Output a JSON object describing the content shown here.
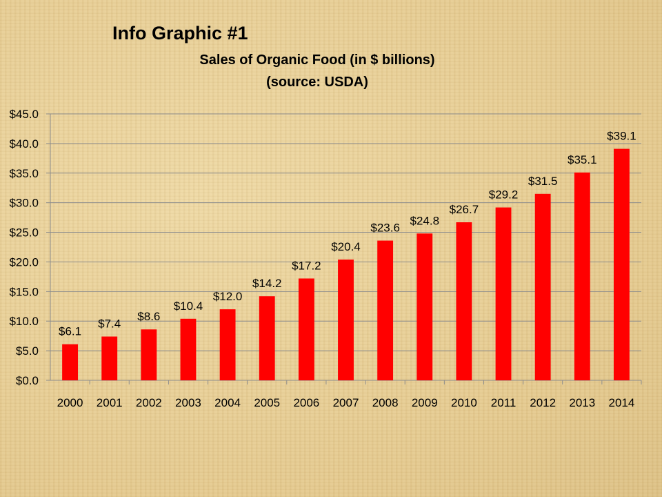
{
  "slide": {
    "heading": "Info Graphic #1",
    "title_line1": "Sales of Organic Food (in $ billions)",
    "title_line2": "(source: USDA)"
  },
  "chart_data": {
    "type": "bar",
    "title": "Sales of Organic Food (in $ billions)",
    "subtitle": "(source: USDA)",
    "categories": [
      "2000",
      "2001",
      "2002",
      "2003",
      "2004",
      "2005",
      "2006",
      "2007",
      "2008",
      "2009",
      "2010",
      "2011",
      "2012",
      "2013",
      "2014"
    ],
    "values": [
      6.1,
      7.4,
      8.6,
      10.4,
      12.0,
      14.2,
      17.2,
      20.4,
      23.6,
      24.8,
      26.7,
      29.2,
      31.5,
      35.1,
      39.1
    ],
    "data_labels": [
      "$6.1",
      "$7.4",
      "$8.6",
      "$10.4",
      "$12.0",
      "$14.2",
      "$17.2",
      "$20.4",
      "$23.6",
      "$24.8",
      "$26.7",
      "$29.2",
      "$31.5",
      "$35.1",
      "$39.1"
    ],
    "y_ticks": [
      "$0.0",
      "$5.0",
      "$10.0",
      "$15.0",
      "$20.0",
      "$25.0",
      "$30.0",
      "$35.0",
      "$40.0",
      "$45.0"
    ],
    "ylim": [
      0,
      45
    ],
    "y_step": 5,
    "grid": true,
    "legend": "none",
    "bar_color": "#ff0000",
    "grid_color": "#8c8c8c"
  }
}
